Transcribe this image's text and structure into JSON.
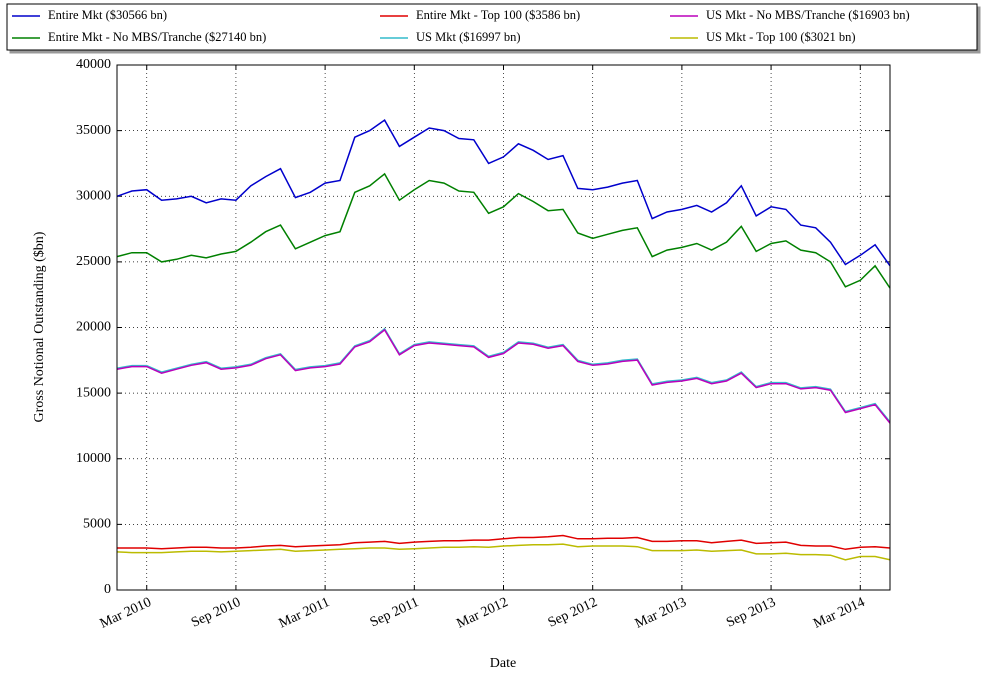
{
  "chart_data": {
    "type": "line",
    "xlabel": "Date",
    "ylabel": "Gross Notional Outstanding ($bn)",
    "x": [
      "2010-01",
      "2010-02",
      "2010-03",
      "2010-04",
      "2010-05",
      "2010-06",
      "2010-07",
      "2010-08",
      "2010-09",
      "2010-10",
      "2010-11",
      "2010-12",
      "2011-01",
      "2011-02",
      "2011-03",
      "2011-04",
      "2011-05",
      "2011-06",
      "2011-07",
      "2011-08",
      "2011-09",
      "2011-10",
      "2011-11",
      "2011-12",
      "2012-01",
      "2012-02",
      "2012-03",
      "2012-04",
      "2012-05",
      "2012-06",
      "2012-07",
      "2012-08",
      "2012-09",
      "2012-10",
      "2012-11",
      "2012-12",
      "2013-01",
      "2013-02",
      "2013-03",
      "2013-04",
      "2013-05",
      "2013-06",
      "2013-07",
      "2013-08",
      "2013-09",
      "2013-10",
      "2013-11",
      "2013-12",
      "2014-01",
      "2014-02",
      "2014-03",
      "2014-04",
      "2014-05"
    ],
    "xlim": [
      "2010-01",
      "2014-05"
    ],
    "xticks": [
      {
        "value": "2010-03",
        "label": "Mar 2010"
      },
      {
        "value": "2010-09",
        "label": "Sep 2010"
      },
      {
        "value": "2011-03",
        "label": "Mar 2011"
      },
      {
        "value": "2011-09",
        "label": "Sep 2011"
      },
      {
        "value": "2012-03",
        "label": "Mar 2012"
      },
      {
        "value": "2012-09",
        "label": "Sep 2012"
      },
      {
        "value": "2013-03",
        "label": "Mar 2013"
      },
      {
        "value": "2013-09",
        "label": "Sep 2013"
      },
      {
        "value": "2014-03",
        "label": "Mar 2014"
      }
    ],
    "ylim": [
      0,
      40000
    ],
    "yticks": [
      0,
      5000,
      10000,
      15000,
      20000,
      25000,
      30000,
      35000,
      40000
    ],
    "grid": true,
    "legend": "top",
    "series": [
      {
        "name": "Entire Mkt ($30566 bn)",
        "color": "#0000cc",
        "values": [
          30000,
          30400,
          30500,
          29700,
          29800,
          30000,
          29500,
          29800,
          29700,
          30800,
          31500,
          32100,
          29900,
          30300,
          31000,
          31200,
          34500,
          35000,
          35800,
          33800,
          34500,
          35200,
          35000,
          34400,
          34300,
          32500,
          33000,
          34000,
          33500,
          32800,
          33100,
          30600,
          30500,
          30700,
          31000,
          31200,
          28300,
          28800,
          29000,
          29300,
          28800,
          29500,
          30800,
          28500,
          29200,
          29000,
          27800,
          27600,
          26500,
          24800,
          25500,
          26300,
          24700
        ]
      },
      {
        "name": "Entire Mkt - No MBS/Tranche ($27140 bn)",
        "color": "#008000",
        "values": [
          25400,
          25700,
          25700,
          25000,
          25200,
          25500,
          25300,
          25600,
          25800,
          26500,
          27300,
          27800,
          26000,
          26500,
          27000,
          27300,
          30300,
          30800,
          31700,
          29700,
          30500,
          31200,
          31000,
          30400,
          30300,
          28700,
          29200,
          30200,
          29600,
          28900,
          29000,
          27200,
          26800,
          27100,
          27400,
          27600,
          25400,
          25900,
          26100,
          26400,
          25900,
          26500,
          27700,
          25800,
          26400,
          26600,
          25900,
          25700,
          25000,
          23100,
          23600,
          24700,
          23000
        ]
      },
      {
        "name": "Entire Mkt - Top 100 ($3586 bn)",
        "color": "#e00000",
        "values": [
          3200,
          3200,
          3200,
          3150,
          3200,
          3250,
          3250,
          3200,
          3200,
          3250,
          3350,
          3400,
          3300,
          3350,
          3400,
          3450,
          3600,
          3650,
          3700,
          3550,
          3650,
          3700,
          3750,
          3750,
          3800,
          3800,
          3900,
          4000,
          4000,
          4050,
          4150,
          3900,
          3900,
          3950,
          3950,
          4000,
          3700,
          3700,
          3750,
          3750,
          3600,
          3700,
          3800,
          3550,
          3600,
          3650,
          3400,
          3350,
          3350,
          3100,
          3250,
          3300,
          3200
        ]
      },
      {
        "name": "US Mkt ($16997 bn)",
        "color": "#33bbcc",
        "values": [
          16900,
          17100,
          17100,
          16600,
          16900,
          17200,
          17400,
          16900,
          17000,
          17200,
          17700,
          18000,
          16800,
          17000,
          17100,
          17300,
          18600,
          19000,
          19900,
          18000,
          18700,
          18900,
          18800,
          18700,
          18600,
          17800,
          18100,
          18900,
          18800,
          18500,
          18700,
          17500,
          17200,
          17300,
          17500,
          17600,
          15700,
          15900,
          16000,
          16200,
          15800,
          16000,
          16600,
          15500,
          15800,
          15800,
          15400,
          15500,
          15300,
          13600,
          13900,
          14200,
          12800
        ]
      },
      {
        "name": "US Mkt - No MBS/Tranche ($16903 bn)",
        "color": "#bb00bb",
        "values": [
          16820,
          17020,
          17020,
          16520,
          16820,
          17120,
          17320,
          16820,
          16920,
          17120,
          17620,
          17920,
          16720,
          16920,
          17020,
          17220,
          18520,
          18920,
          19820,
          17920,
          18620,
          18820,
          18720,
          18620,
          18520,
          17720,
          18020,
          18820,
          18720,
          18420,
          18620,
          17420,
          17120,
          17220,
          17420,
          17520,
          15620,
          15820,
          15920,
          16120,
          15720,
          15920,
          16520,
          15420,
          15720,
          15720,
          15320,
          15420,
          15220,
          13520,
          13820,
          14120,
          12720
        ]
      },
      {
        "name": "US Mkt - Top 100 ($3021 bn)",
        "color": "#bbbb00",
        "values": [
          2900,
          2850,
          2850,
          2850,
          2900,
          2950,
          2950,
          2900,
          2950,
          3000,
          3050,
          3100,
          2950,
          3000,
          3050,
          3100,
          3150,
          3200,
          3200,
          3100,
          3150,
          3200,
          3250,
          3250,
          3300,
          3250,
          3350,
          3400,
          3450,
          3450,
          3500,
          3300,
          3350,
          3350,
          3350,
          3300,
          3000,
          3000,
          3000,
          3050,
          2950,
          3000,
          3050,
          2750,
          2750,
          2800,
          2700,
          2700,
          2650,
          2300,
          2550,
          2550,
          2300
        ]
      }
    ]
  }
}
